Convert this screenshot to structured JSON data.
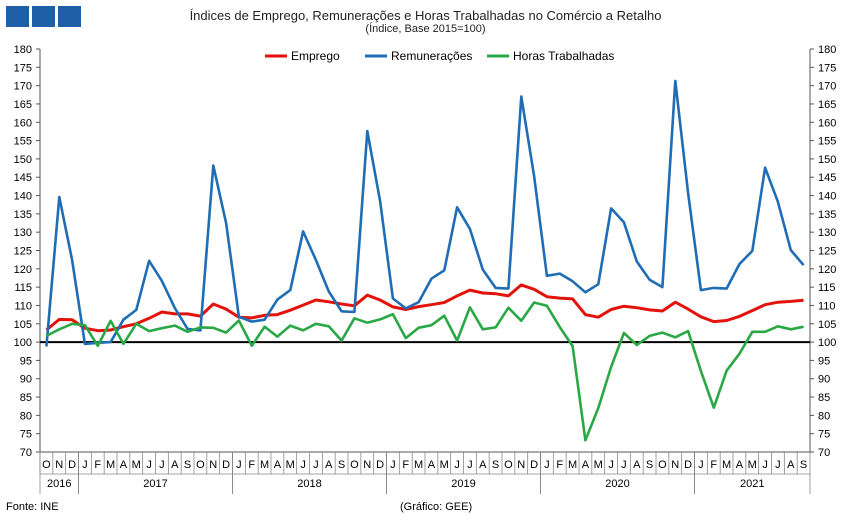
{
  "title": "Índices de Emprego, Remunerações e Horas Trabalhadas no Comércio a Retalho",
  "subtitle": "(Índice, Base 2015=100)",
  "source": "Fonte: INE",
  "credit": "(Gráfico: GEE)",
  "chart_data": {
    "type": "line",
    "ylim": [
      70,
      180
    ],
    "yticks": [
      70,
      75,
      80,
      85,
      90,
      95,
      100,
      105,
      110,
      115,
      120,
      125,
      130,
      135,
      140,
      145,
      150,
      155,
      160,
      165,
      170,
      175,
      180
    ],
    "reference_line": 100,
    "legend_position": "top-center",
    "months": [
      "O",
      "N",
      "D",
      "J",
      "F",
      "M",
      "A",
      "M",
      "J",
      "J",
      "A",
      "S",
      "O",
      "N",
      "D",
      "J",
      "F",
      "M",
      "A",
      "M",
      "J",
      "J",
      "A",
      "S",
      "O",
      "N",
      "D",
      "J",
      "F",
      "M",
      "A",
      "M",
      "J",
      "J",
      "A",
      "S",
      "O",
      "N",
      "D",
      "J",
      "F",
      "M",
      "A",
      "M",
      "J",
      "J",
      "A",
      "S",
      "O",
      "N",
      "D",
      "J",
      "F",
      "M",
      "A",
      "M",
      "J",
      "J",
      "A",
      "S"
    ],
    "years": [
      {
        "label": "2016",
        "start": 0,
        "end": 3
      },
      {
        "label": "2017",
        "start": 3,
        "end": 15
      },
      {
        "label": "2018",
        "start": 15,
        "end": 27
      },
      {
        "label": "2019",
        "start": 27,
        "end": 39
      },
      {
        "label": "2020",
        "start": 39,
        "end": 51
      },
      {
        "label": "2021",
        "start": 51,
        "end": 60
      }
    ],
    "series": [
      {
        "name": "Emprego",
        "color": "#e3120b",
        "values": [
          103.3,
          106.2,
          106.1,
          103.8,
          103.1,
          103.3,
          104.2,
          105.0,
          106.5,
          108.2,
          107.7,
          107.7,
          107.1,
          110.4,
          109.0,
          106.8,
          106.6,
          107.3,
          107.5,
          108.7,
          110.1,
          111.5,
          111.0,
          110.4,
          109.9,
          112.8,
          111.5,
          109.6,
          108.9,
          109.7,
          110.2,
          110.8,
          112.6,
          114.2,
          113.4,
          113.2,
          112.6,
          115.6,
          114.4,
          112.4,
          112.0,
          111.8,
          107.5,
          106.8,
          108.9,
          109.8,
          109.4,
          108.8,
          108.5,
          110.9,
          109.0,
          106.9,
          105.6,
          105.9,
          107.0,
          108.6,
          110.2,
          110.9,
          111.1,
          111.4
        ]
      },
      {
        "name": "Remunerações",
        "color": "#1f6db5",
        "values": [
          98.8,
          139.6,
          122.4,
          99.5,
          99.8,
          100.0,
          106.1,
          108.8,
          122.2,
          116.7,
          109.3,
          103.6,
          103.2,
          148.2,
          132.5,
          106.9,
          105.6,
          106.1,
          111.6,
          114.2,
          130.2,
          122.4,
          113.8,
          108.4,
          108.2,
          157.6,
          138.5,
          111.9,
          109.2,
          110.9,
          117.3,
          119.6,
          136.8,
          130.9,
          119.8,
          114.8,
          114.6,
          167.0,
          145.3,
          118.1,
          118.7,
          116.6,
          113.6,
          115.8,
          136.5,
          132.7,
          122.0,
          117.0,
          115.0,
          171.3,
          140.7,
          114.2,
          114.8,
          114.6,
          121.3,
          124.9,
          147.6,
          138.3,
          125.1,
          121.0
        ]
      },
      {
        "name": "Horas Trabalhadas",
        "color": "#2aa845",
        "values": [
          101.7,
          103.5,
          105.0,
          104.6,
          99.0,
          105.8,
          99.5,
          105.0,
          103.0,
          103.8,
          104.5,
          102.8,
          104.0,
          103.9,
          102.6,
          105.9,
          99.0,
          104.2,
          101.5,
          104.5,
          103.2,
          105.0,
          104.3,
          100.4,
          106.5,
          105.3,
          106.2,
          107.6,
          101.1,
          103.9,
          104.6,
          107.2,
          100.4,
          109.5,
          103.5,
          104.0,
          109.4,
          105.8,
          110.8,
          109.9,
          104.1,
          98.9,
          73.2,
          82.0,
          93.2,
          102.5,
          99.2,
          101.7,
          102.6,
          101.3,
          103.0,
          92.1,
          82.1,
          92.2,
          96.8,
          102.8,
          102.8,
          104.3,
          103.5,
          104.2
        ]
      }
    ]
  }
}
